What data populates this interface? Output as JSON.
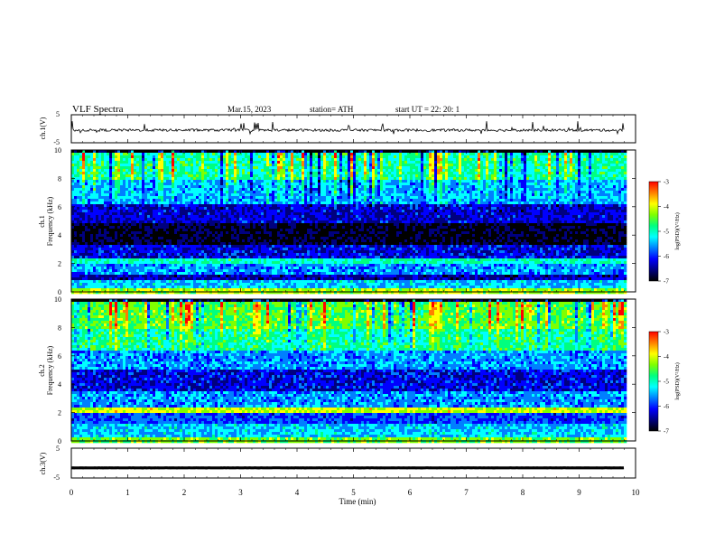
{
  "header": {
    "title": "VLF  Spectra",
    "date": "Mar.15, 2023",
    "station": "station= ATH",
    "start": "start  UT  =    22: 20: 1"
  },
  "colors": {
    "colormap": [
      "#000000",
      "#00007f",
      "#0000ff",
      "#007fff",
      "#00ffff",
      "#00ff7f",
      "#7fff00",
      "#ffff00",
      "#ff7f00",
      "#ff0000",
      "#ffffff"
    ],
    "trace": "#000000"
  },
  "chart_data": [
    {
      "type": "line",
      "ylabel": "ch.1(V)",
      "yticks": [
        "5",
        "-5"
      ],
      "ylim": [
        -5,
        5
      ],
      "xlim": [
        0,
        10
      ],
      "data_end_min": 9.8,
      "description_of_values": "noisy waveform near -0.5 V with occasional spikes",
      "series": [
        {
          "values_mean": -0.5,
          "spike_max": 1.8
        }
      ]
    },
    {
      "type": "heatmap",
      "ylabel": [
        "ch.1",
        "Frequency  (kHz)"
      ],
      "yticks": [
        "10",
        "8",
        "6",
        "4",
        "2",
        "0"
      ],
      "ylim": [
        0,
        10
      ],
      "xlim": [
        0,
        10
      ],
      "colorbar": {
        "label": "log(PSD)(V²/Hz)",
        "ticks": [
          "-3",
          "-4",
          "-5",
          "-6",
          "-7"
        ],
        "range": [
          -7,
          -3
        ]
      },
      "bands_khz": [
        {
          "from": 0.0,
          "to": 0.3,
          "level": -4.2
        },
        {
          "from": 0.3,
          "to": 0.9,
          "level": -5.4
        },
        {
          "from": 0.9,
          "to": 1.4,
          "level": -6.4
        },
        {
          "from": 1.4,
          "to": 2.0,
          "level": -5.6
        },
        {
          "from": 2.0,
          "to": 2.4,
          "level": -5.0
        },
        {
          "from": 2.4,
          "to": 3.4,
          "level": -6.2
        },
        {
          "from": 3.4,
          "to": 5.0,
          "level": -6.9
        },
        {
          "from": 5.0,
          "to": 6.3,
          "level": -6.3
        },
        {
          "from": 6.3,
          "to": 8.0,
          "level": -5.5
        },
        {
          "from": 8.0,
          "to": 10.0,
          "level": -4.9
        }
      ]
    },
    {
      "type": "heatmap",
      "ylabel": [
        "ch.2",
        "Frequency  (kHz)"
      ],
      "yticks": [
        "10",
        "8",
        "6",
        "4",
        "2",
        "0"
      ],
      "ylim": [
        0,
        10
      ],
      "xlim": [
        0,
        10
      ],
      "colorbar": {
        "label": "log(PSD)(V²/Hz)",
        "ticks": [
          "-3",
          "-4",
          "-5",
          "-6",
          "-7"
        ],
        "range": [
          -7,
          -3
        ]
      },
      "bands_khz": [
        {
          "from": 0.0,
          "to": 0.4,
          "level": -4.4
        },
        {
          "from": 0.4,
          "to": 1.4,
          "level": -5.4
        },
        {
          "from": 1.4,
          "to": 2.0,
          "level": -5.9
        },
        {
          "from": 2.0,
          "to": 2.4,
          "level": -4.1
        },
        {
          "from": 2.4,
          "to": 3.6,
          "level": -5.6
        },
        {
          "from": 3.6,
          "to": 5.2,
          "level": -6.2
        },
        {
          "from": 5.2,
          "to": 6.5,
          "level": -5.6
        },
        {
          "from": 6.5,
          "to": 8.0,
          "level": -4.9
        },
        {
          "from": 8.0,
          "to": 10.0,
          "level": -4.5
        }
      ]
    },
    {
      "type": "line",
      "ylabel": "ch.3(V)",
      "yticks": [
        "5",
        "-5"
      ],
      "ylim": [
        -5,
        5
      ],
      "xlim": [
        0,
        10
      ],
      "data_end_min": 9.8,
      "series": [
        {
          "values_mean": -1.6,
          "spike_max": -1.4
        }
      ]
    }
  ],
  "xaxis": {
    "label": "Time  (min)",
    "ticks": [
      "0",
      "1",
      "2",
      "3",
      "4",
      "5",
      "6",
      "7",
      "8",
      "9",
      "10"
    ]
  }
}
